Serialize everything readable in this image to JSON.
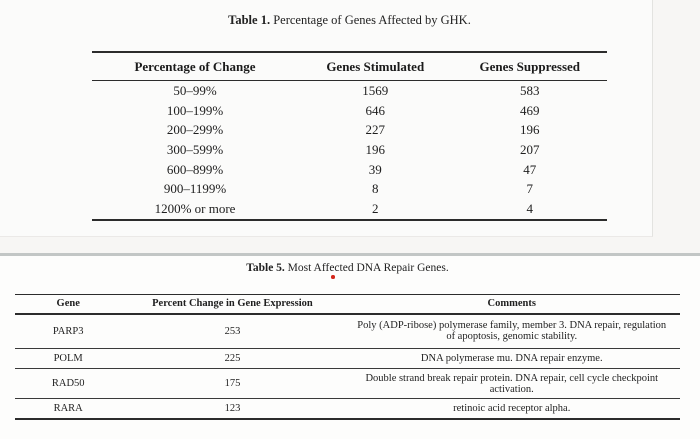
{
  "table1": {
    "title_bold": "Table 1.",
    "title_rest": " Percentage of Genes Affected by GHK.",
    "columns": [
      "Percentage of Change",
      "Genes Stimulated",
      "Genes Suppressed"
    ],
    "rows": [
      [
        "50–99%",
        "1569",
        "583"
      ],
      [
        "100–199%",
        "646",
        "469"
      ],
      [
        "200–299%",
        "227",
        "196"
      ],
      [
        "300–599%",
        "196",
        "207"
      ],
      [
        "600–899%",
        "39",
        "47"
      ],
      [
        "900–1199%",
        "8",
        "7"
      ],
      [
        "1200% or more",
        "2",
        "4"
      ]
    ]
  },
  "table5": {
    "title_bold": "Table 5.",
    "title_rest": " Most Affected DNA Repair Genes.",
    "columns": [
      "Gene",
      "Percent Change in Gene Expression",
      "Comments"
    ],
    "rows": [
      [
        "PARP3",
        "253",
        "Poly (ADP-ribose) polymerase family, member 3. DNA repair, regulation of apoptosis, genomic stability."
      ],
      [
        "POLM",
        "225",
        "DNA polymerase mu. DNA repair enzyme."
      ],
      [
        "RAD50",
        "175",
        "Double strand break repair protein. DNA repair, cell cycle checkpoint activation."
      ],
      [
        "RARA",
        "123",
        "retinoic acid receptor alpha."
      ]
    ]
  },
  "annotation": {
    "red_dot_color": "#d3261b",
    "separator_color": "#c2c6c5"
  }
}
